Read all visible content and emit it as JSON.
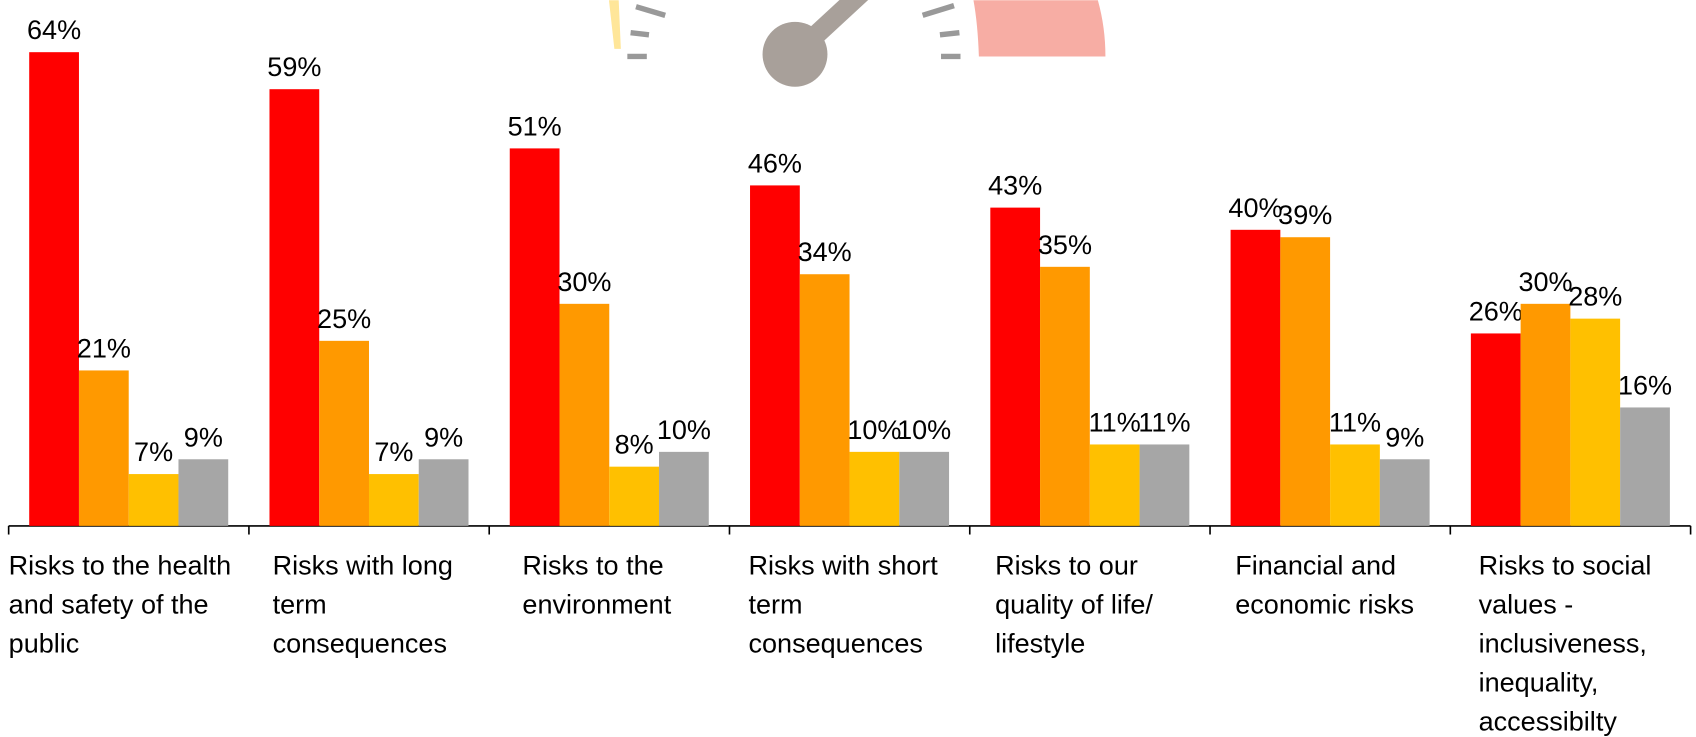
{
  "chart_data": {
    "type": "bar",
    "categories": [
      "Risks to the health and safety of the public",
      "Risks with long term consequences",
      "Risks to the environment",
      "Risks with short term consequences",
      "Risks to our quality of life/ lifestyle",
      "Financial and economic risks",
      "Risks to social values - inclusiveness, inequality, accessibilty"
    ],
    "series": [
      {
        "color": "#ff0000",
        "values": [
          64,
          59,
          51,
          46,
          43,
          40,
          26
        ],
        "value_labels": [
          "64%",
          "59%",
          "51%",
          "46%",
          "43%",
          "40%",
          "26%"
        ]
      },
      {
        "color": "#ff9900",
        "values": [
          21,
          25,
          30,
          34,
          35,
          39,
          30
        ],
        "value_labels": [
          "21%",
          "25%",
          "30%",
          "34%",
          "35%",
          "39%",
          "30%"
        ]
      },
      {
        "color": "#ffc000",
        "values": [
          7,
          7,
          8,
          10,
          11,
          11,
          28
        ],
        "value_labels": [
          "7%",
          "7%",
          "8%",
          "10%",
          "11%",
          "11%",
          "28%"
        ]
      },
      {
        "color": "#a6a6a6",
        "values": [
          9,
          9,
          10,
          10,
          11,
          9,
          16
        ],
        "value_labels": [
          "9%",
          "9%",
          "10%",
          "10%",
          "11%",
          "9%",
          "16%"
        ]
      }
    ],
    "ylim": [
      0,
      70
    ]
  }
}
